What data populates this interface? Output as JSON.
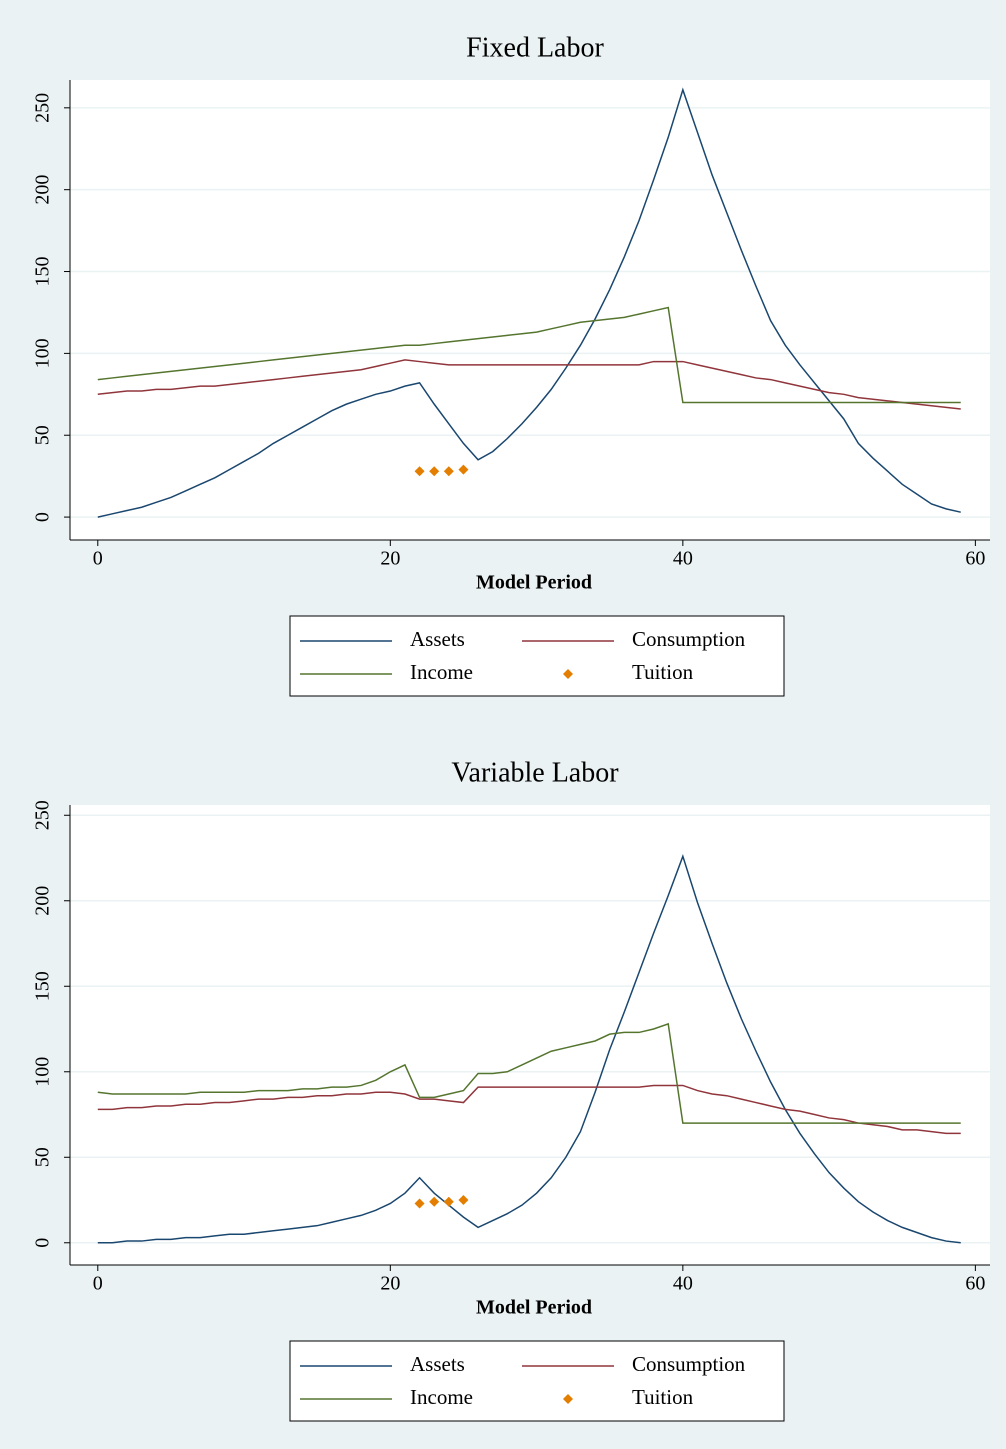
{
  "chart_data": [
    {
      "type": "line",
      "title": "Fixed Labor",
      "x_label": "Model Period",
      "x": [
        0,
        1,
        2,
        3,
        4,
        5,
        6,
        7,
        8,
        9,
        10,
        11,
        12,
        13,
        14,
        15,
        16,
        17,
        18,
        19,
        20,
        21,
        22,
        23,
        24,
        25,
        26,
        27,
        28,
        29,
        30,
        31,
        32,
        33,
        34,
        35,
        36,
        37,
        38,
        39,
        40,
        41,
        42,
        43,
        44,
        45,
        46,
        47,
        48,
        49,
        50,
        51,
        52,
        53,
        54,
        55,
        56,
        57,
        58,
        59
      ],
      "xlim": [
        -1.9,
        61
      ],
      "xticks": [
        0,
        20,
        40,
        60
      ],
      "ylim": [
        -14,
        267
      ],
      "yticks": [
        0,
        50,
        100,
        150,
        200,
        250
      ],
      "grid": true,
      "series": [
        {
          "name": "Assets",
          "type": "line",
          "color": "#1a476f",
          "values": [
            0,
            2,
            4,
            6,
            9,
            12,
            16,
            20,
            24,
            29,
            34,
            39,
            45,
            50,
            55,
            60,
            65,
            69,
            72,
            75,
            77,
            80,
            82,
            69,
            57,
            45,
            35,
            40,
            48,
            57,
            67,
            78,
            91,
            105,
            121,
            139,
            159,
            181,
            206,
            232,
            261,
            235,
            209,
            186,
            163,
            141,
            120,
            105,
            93,
            82,
            71,
            60,
            45,
            36,
            28,
            20,
            14,
            8,
            5,
            3
          ]
        },
        {
          "name": "Consumption",
          "type": "line",
          "color": "#90353b",
          "values": [
            75,
            76,
            77,
            77,
            78,
            78,
            79,
            80,
            80,
            81,
            82,
            83,
            84,
            85,
            86,
            87,
            88,
            89,
            90,
            92,
            94,
            96,
            95,
            94,
            93,
            93,
            93,
            93,
            93,
            93,
            93,
            93,
            93,
            93,
            93,
            93,
            93,
            93,
            95,
            95,
            95,
            93,
            91,
            89,
            87,
            85,
            84,
            82,
            80,
            78,
            76,
            75,
            73,
            72,
            71,
            70,
            69,
            68,
            67,
            66
          ]
        },
        {
          "name": "Income",
          "type": "line",
          "color": "#55752f",
          "values": [
            84,
            85,
            86,
            87,
            88,
            89,
            90,
            91,
            92,
            93,
            94,
            95,
            96,
            97,
            98,
            99,
            100,
            101,
            102,
            103,
            104,
            105,
            105,
            106,
            107,
            108,
            109,
            110,
            111,
            112,
            113,
            115,
            117,
            119,
            120,
            121,
            122,
            124,
            126,
            128,
            70,
            70,
            70,
            70,
            70,
            70,
            70,
            70,
            70,
            70,
            70,
            70,
            70,
            70,
            70,
            70,
            70,
            70,
            70,
            70
          ]
        },
        {
          "name": "Tuition",
          "type": "scatter",
          "color": "#e37e00",
          "values": [
            null,
            null,
            null,
            null,
            null,
            null,
            null,
            null,
            null,
            null,
            null,
            null,
            null,
            null,
            null,
            null,
            null,
            null,
            null,
            null,
            null,
            null,
            28,
            28,
            28,
            29,
            null,
            null,
            null,
            null,
            null,
            null,
            null,
            null,
            null,
            null,
            null,
            null,
            null,
            null,
            null,
            null,
            null,
            null,
            null,
            null,
            null,
            null,
            null,
            null,
            null,
            null,
            null,
            null,
            null,
            null,
            null,
            null,
            null,
            null
          ]
        }
      ]
    },
    {
      "type": "line",
      "title": "Variable Labor",
      "x_label": "Model Period",
      "x": [
        0,
        1,
        2,
        3,
        4,
        5,
        6,
        7,
        8,
        9,
        10,
        11,
        12,
        13,
        14,
        15,
        16,
        17,
        18,
        19,
        20,
        21,
        22,
        23,
        24,
        25,
        26,
        27,
        28,
        29,
        30,
        31,
        32,
        33,
        34,
        35,
        36,
        37,
        38,
        39,
        40,
        41,
        42,
        43,
        44,
        45,
        46,
        47,
        48,
        49,
        50,
        51,
        52,
        53,
        54,
        55,
        56,
        57,
        58,
        59
      ],
      "xlim": [
        -1.9,
        61
      ],
      "xticks": [
        0,
        20,
        40,
        60
      ],
      "ylim": [
        -13,
        256
      ],
      "yticks": [
        0,
        50,
        100,
        150,
        200,
        250
      ],
      "grid": true,
      "series": [
        {
          "name": "Assets",
          "type": "line",
          "color": "#1a476f",
          "values": [
            0,
            0,
            1,
            1,
            2,
            2,
            3,
            3,
            4,
            5,
            5,
            6,
            7,
            8,
            9,
            10,
            12,
            14,
            16,
            19,
            23,
            29,
            38,
            29,
            22,
            15,
            9,
            13,
            17,
            22,
            29,
            38,
            50,
            65,
            88,
            113,
            135,
            158,
            181,
            203,
            226,
            199,
            175,
            152,
            131,
            112,
            94,
            78,
            64,
            52,
            41,
            32,
            24,
            18,
            13,
            9,
            6,
            3,
            1,
            0
          ]
        },
        {
          "name": "Consumption",
          "type": "line",
          "color": "#90353b",
          "values": [
            78,
            78,
            79,
            79,
            80,
            80,
            81,
            81,
            82,
            82,
            83,
            84,
            84,
            85,
            85,
            86,
            86,
            87,
            87,
            88,
            88,
            87,
            84,
            84,
            83,
            82,
            91,
            91,
            91,
            91,
            91,
            91,
            91,
            91,
            91,
            91,
            91,
            91,
            92,
            92,
            92,
            89,
            87,
            86,
            84,
            82,
            80,
            78,
            77,
            75,
            73,
            72,
            70,
            69,
            68,
            66,
            66,
            65,
            64,
            64
          ]
        },
        {
          "name": "Income",
          "type": "line",
          "color": "#55752f",
          "values": [
            88,
            87,
            87,
            87,
            87,
            87,
            87,
            88,
            88,
            88,
            88,
            89,
            89,
            89,
            90,
            90,
            91,
            91,
            92,
            95,
            100,
            104,
            85,
            85,
            87,
            89,
            99,
            99,
            100,
            104,
            108,
            112,
            114,
            116,
            118,
            122,
            123,
            123,
            125,
            128,
            70,
            70,
            70,
            70,
            70,
            70,
            70,
            70,
            70,
            70,
            70,
            70,
            70,
            70,
            70,
            70,
            70,
            70,
            70,
            70
          ]
        },
        {
          "name": "Tuition",
          "type": "scatter",
          "color": "#e37e00",
          "values": [
            null,
            null,
            null,
            null,
            null,
            null,
            null,
            null,
            null,
            null,
            null,
            null,
            null,
            null,
            null,
            null,
            null,
            null,
            null,
            null,
            null,
            null,
            23,
            24,
            24,
            25,
            null,
            null,
            null,
            null,
            null,
            null,
            null,
            null,
            null,
            null,
            null,
            null,
            null,
            null,
            null,
            null,
            null,
            null,
            null,
            null,
            null,
            null,
            null,
            null,
            null,
            null,
            null,
            null,
            null,
            null,
            null,
            null,
            null,
            null
          ]
        }
      ]
    }
  ]
}
